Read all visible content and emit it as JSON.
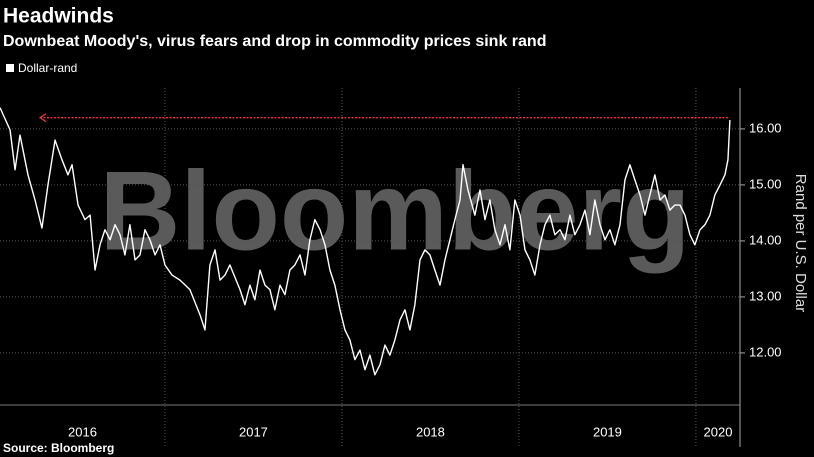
{
  "chart_data": {
    "type": "line",
    "title": "Headwinds",
    "subtitle": "Downbeat Moody's, virus fears and drop in commodity prices sink rand",
    "y_axis_label": "Rand per U.S. Dollar",
    "source": "Source: Bloomberg",
    "watermark": "Bloomberg",
    "grid": true,
    "legend": "top-left",
    "x": [
      2016.068,
      2016.125,
      2016.153,
      2016.181,
      2016.226,
      2016.266,
      2016.305,
      2016.339,
      2016.379,
      2016.418,
      2016.452,
      2016.475,
      2016.509,
      2016.548,
      2016.577,
      2016.605,
      2016.633,
      2016.661,
      2016.69,
      2016.718,
      2016.746,
      2016.774,
      2016.802,
      2016.831,
      2016.859,
      2016.887,
      2016.915,
      2016.944,
      2016.972,
      2017.0,
      2017.04,
      2017.085,
      2017.141,
      2017.198,
      2017.226,
      2017.254,
      2017.283,
      2017.311,
      2017.339,
      2017.367,
      2017.424,
      2017.452,
      2017.48,
      2017.508,
      2017.537,
      2017.565,
      2017.593,
      2017.621,
      2017.65,
      2017.678,
      2017.706,
      2017.734,
      2017.763,
      2017.791,
      2017.819,
      2017.847,
      2017.876,
      2017.904,
      2017.932,
      2017.96,
      2017.989,
      2018.017,
      2018.045,
      2018.073,
      2018.102,
      2018.13,
      2018.158,
      2018.186,
      2018.215,
      2018.243,
      2018.271,
      2018.299,
      2018.328,
      2018.356,
      2018.384,
      2018.412,
      2018.441,
      2018.469,
      2018.497,
      2018.525,
      2018.554,
      2018.582,
      2018.61,
      2018.638,
      2018.667,
      2018.684,
      2018.712,
      2018.751,
      2018.78,
      2018.808,
      2018.836,
      2018.864,
      2018.893,
      2018.921,
      2018.949,
      2018.977,
      2019.006,
      2019.034,
      2019.062,
      2019.09,
      2019.119,
      2019.147,
      2019.175,
      2019.203,
      2019.232,
      2019.26,
      2019.288,
      2019.316,
      2019.345,
      2019.373,
      2019.401,
      2019.429,
      2019.458,
      2019.486,
      2019.514,
      2019.542,
      2019.571,
      2019.599,
      2019.627,
      2019.655,
      2019.684,
      2019.712,
      2019.74,
      2019.768,
      2019.797,
      2019.825,
      2019.853,
      2019.881,
      2019.91,
      2019.938,
      2019.966,
      2019.994,
      2020.023,
      2020.051,
      2020.079,
      2020.107,
      2020.136,
      2020.164,
      2020.181,
      2020.192
    ],
    "series": [
      {
        "name": "Dollar-rand",
        "color": "#ffffff",
        "values": [
          16.38,
          15.98,
          15.27,
          15.89,
          15.18,
          14.73,
          14.23,
          15.0,
          15.8,
          15.45,
          15.18,
          15.36,
          14.64,
          14.38,
          14.46,
          13.48,
          13.93,
          14.2,
          14.02,
          14.29,
          14.11,
          13.75,
          14.29,
          13.66,
          13.75,
          14.2,
          14.02,
          13.75,
          13.93,
          13.57,
          13.39,
          13.3,
          13.13,
          12.68,
          12.41,
          13.57,
          13.84,
          13.3,
          13.39,
          13.57,
          13.13,
          12.86,
          13.21,
          12.95,
          13.48,
          13.21,
          13.13,
          12.77,
          13.21,
          13.04,
          13.48,
          13.57,
          13.75,
          13.39,
          14.02,
          14.38,
          14.2,
          13.93,
          13.48,
          13.21,
          12.77,
          12.41,
          12.23,
          11.88,
          12.05,
          11.7,
          11.96,
          11.61,
          11.79,
          12.14,
          11.96,
          12.23,
          12.59,
          12.77,
          12.41,
          12.86,
          13.66,
          13.84,
          13.75,
          13.48,
          13.21,
          13.66,
          14.02,
          14.38,
          14.73,
          15.36,
          14.91,
          14.46,
          14.91,
          14.38,
          14.73,
          14.2,
          13.93,
          14.29,
          13.84,
          14.73,
          14.46,
          13.84,
          13.66,
          13.39,
          13.93,
          14.29,
          14.46,
          14.11,
          14.2,
          14.02,
          14.46,
          14.11,
          14.29,
          14.55,
          14.11,
          14.73,
          14.29,
          14.02,
          14.2,
          13.93,
          14.29,
          15.09,
          15.36,
          15.09,
          14.82,
          14.46,
          14.82,
          15.18,
          14.73,
          14.82,
          14.55,
          14.64,
          14.64,
          14.46,
          14.11,
          13.93,
          14.2,
          14.29,
          14.46,
          14.82,
          15.0,
          15.18,
          15.45,
          16.16
        ]
      }
    ],
    "reference_line": {
      "value": 16.2,
      "from": 2016.294,
      "to": 2020.181,
      "color": "#e8323c"
    },
    "xlim": [
      2016.068,
      2020.249
    ],
    "xticks": [
      2016,
      2017,
      2018,
      2019,
      2020
    ],
    "ylim": [
      11.07,
      16.73
    ],
    "yticks": [
      {
        "value": 12,
        "label": "12.00"
      },
      {
        "value": 13,
        "label": "13.00"
      },
      {
        "value": 14,
        "label": "14.00"
      },
      {
        "value": 15,
        "label": "15.00"
      },
      {
        "value": 16,
        "label": "16.00"
      }
    ]
  }
}
